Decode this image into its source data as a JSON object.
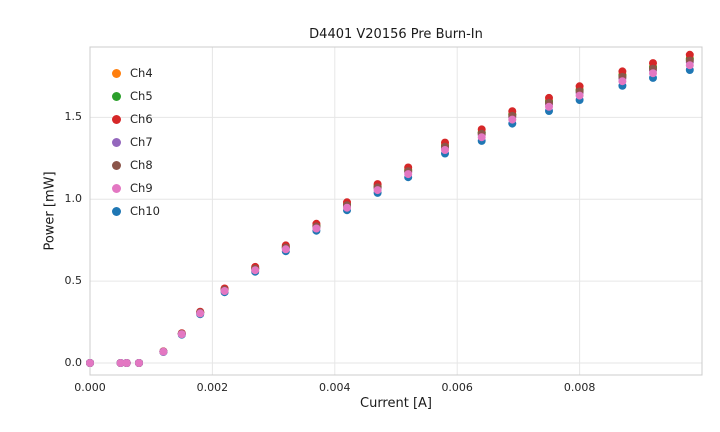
{
  "chart_data": {
    "type": "scatter",
    "title": "D4401 V20156 Pre Burn-In",
    "xlabel": "Current [A]",
    "ylabel": "Power [mW]",
    "xlim": [
      0.0,
      0.01
    ],
    "ylim": [
      -0.073,
      1.93
    ],
    "grid": true,
    "legend_position": "upper left",
    "xticks": {
      "values": [
        0.0,
        0.002,
        0.004,
        0.006,
        0.008
      ],
      "labels": [
        "0.000",
        "0.002",
        "0.004",
        "0.006",
        "0.008"
      ]
    },
    "yticks": {
      "values": [
        0.0,
        0.5,
        1.0,
        1.5
      ],
      "labels": [
        "0.0",
        "0.5",
        "1.0",
        "1.5"
      ]
    },
    "x": [
      0.0,
      0.0005,
      0.0006,
      0.0008,
      0.0012,
      0.0015,
      0.0018,
      0.0022,
      0.0027,
      0.0032,
      0.0037,
      0.0042,
      0.0047,
      0.0052,
      0.0058,
      0.0064,
      0.0069,
      0.0075,
      0.008,
      0.0087,
      0.0092,
      0.0098
    ],
    "base_power_mw": [
      0.0,
      0.0,
      0.0,
      0.0,
      0.07,
      0.18,
      0.31,
      0.45,
      0.58,
      0.71,
      0.84,
      0.97,
      1.08,
      1.18,
      1.33,
      1.41,
      1.52,
      1.6,
      1.67,
      1.76,
      1.81,
      1.86
    ],
    "series": [
      {
        "name": "Ch4",
        "color": "#ff7f0e",
        "scale": 1.0,
        "draw_z": 1
      },
      {
        "name": "Ch5",
        "color": "#2ca02c",
        "scale": 0.998,
        "draw_z": 2
      },
      {
        "name": "Ch6",
        "color": "#d62728",
        "scale": 1.012,
        "draw_z": 3
      },
      {
        "name": "Ch7",
        "color": "#9467bd",
        "scale": 0.988,
        "draw_z": 4
      },
      {
        "name": "Ch8",
        "color": "#8c564b",
        "scale": 0.993,
        "draw_z": 5
      },
      {
        "name": "Ch9",
        "color": "#e377c2",
        "scale": 0.978,
        "draw_z": 7
      },
      {
        "name": "Ch10",
        "color": "#1f77b4",
        "scale": 0.962,
        "draw_z": 6
      }
    ],
    "grid_color": "#e6e6e6",
    "spine_color": "#cccccc"
  }
}
